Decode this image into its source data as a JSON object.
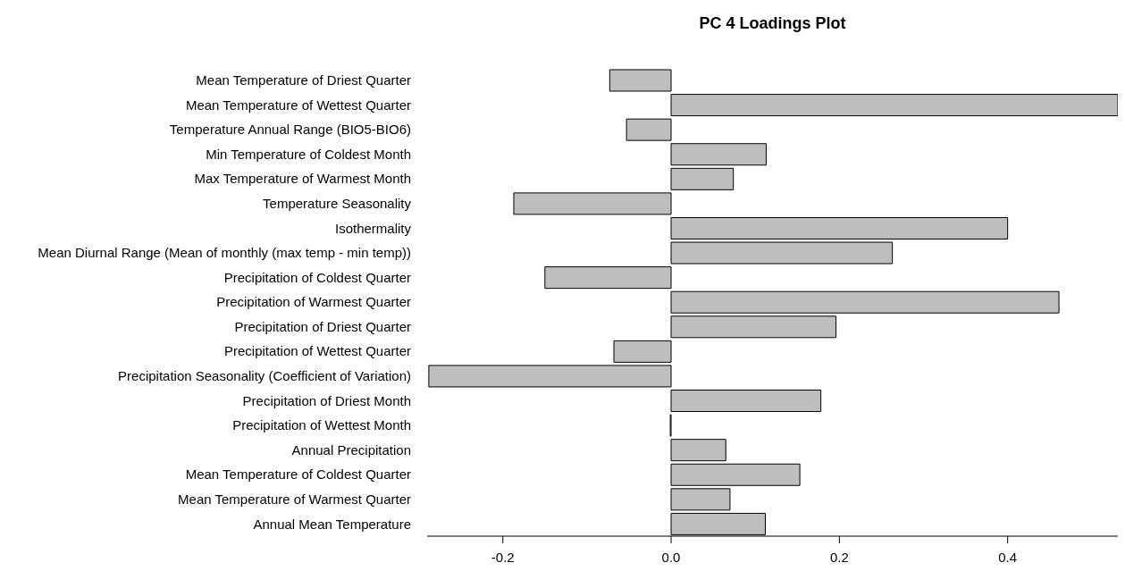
{
  "chart_data": {
    "type": "bar",
    "orientation": "horizontal",
    "title": "PC 4 Loadings Plot",
    "categories": [
      "Mean Temperature of Driest Quarter",
      "Mean Temperature of Wettest Quarter",
      "Temperature Annual Range (BIO5-BIO6)",
      "Min Temperature of Coldest Month",
      "Max Temperature of Warmest Month",
      "Temperature Seasonality",
      "Isothermality",
      "Mean Diurnal Range (Mean of monthly (max temp - min temp))",
      "Precipitation of Coldest Quarter",
      "Precipitation of Warmest Quarter",
      "Precipitation of Driest Quarter",
      "Precipitation of Wettest Quarter",
      "Precipitation Seasonality (Coefficient of Variation)",
      "Precipitation of Driest Month",
      "Precipitation of Wettest Month",
      "Annual Precipitation",
      "Mean Temperature of Coldest Quarter",
      "Mean Temperature of Warmest Quarter",
      "Annual Mean Temperature"
    ],
    "values": [
      -0.073,
      0.531,
      -0.053,
      0.113,
      0.074,
      -0.187,
      0.4,
      0.263,
      -0.15,
      0.461,
      0.196,
      -0.068,
      -0.288,
      0.178,
      -0.001,
      0.065,
      0.153,
      0.07,
      0.112
    ],
    "color": "#bebebe",
    "xlim": [
      -0.29,
      0.531
    ],
    "xticks": [
      {
        "value": -0.2,
        "label": "-0.2"
      },
      {
        "value": 0,
        "label": "0.0"
      },
      {
        "value": 0.2,
        "label": "0.2"
      },
      {
        "value": 0.4,
        "label": "0.4"
      }
    ],
    "grid": false
  }
}
